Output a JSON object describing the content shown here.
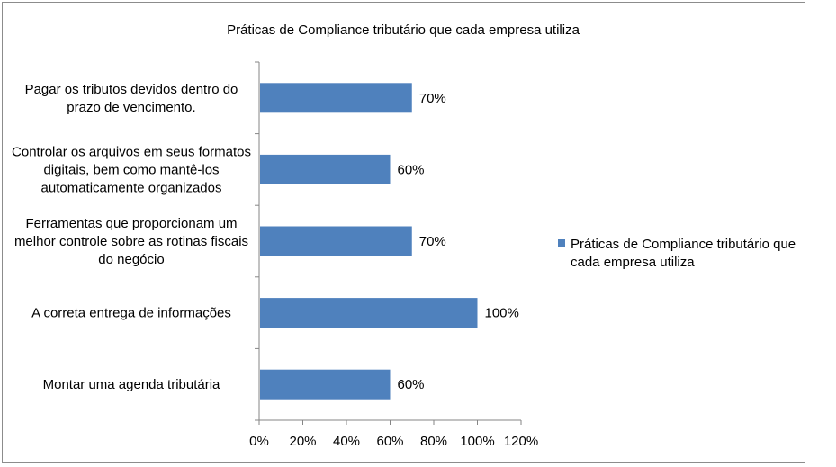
{
  "chart_data": {
    "type": "bar",
    "orientation": "horizontal",
    "title": "Práticas de Compliance tributário que cada empresa utiliza",
    "categories": [
      [
        "Pagar os tributos devidos dentro do",
        "prazo de vencimento."
      ],
      [
        "Controlar os arquivos em seus formatos",
        "digitais, bem como mantê-los",
        "automaticamente organizados"
      ],
      [
        "Ferramentas que proporcionam um",
        "melhor controle sobre as rotinas fiscais",
        "do negócio"
      ],
      [
        "A correta entrega de informações"
      ],
      [
        "Montar uma agenda tributária"
      ]
    ],
    "series": [
      {
        "name": "Práticas de Compliance tributário que cada empresa utiliza",
        "legend_lines": [
          "Práticas de Compliance tributário que",
          "cada empresa utiliza"
        ],
        "values": [
          70,
          60,
          70,
          100,
          60
        ],
        "data_labels": [
          "70%",
          "60%",
          "70%",
          "100%",
          "60%"
        ],
        "color": "#4f81bd"
      }
    ],
    "xlim": [
      0,
      120
    ],
    "x_ticks": [
      0,
      20,
      40,
      60,
      80,
      100,
      120
    ],
    "x_tick_labels": [
      "0%",
      "20%",
      "40%",
      "60%",
      "80%",
      "100%",
      "120%"
    ],
    "grid": false,
    "legend_position": "right"
  }
}
